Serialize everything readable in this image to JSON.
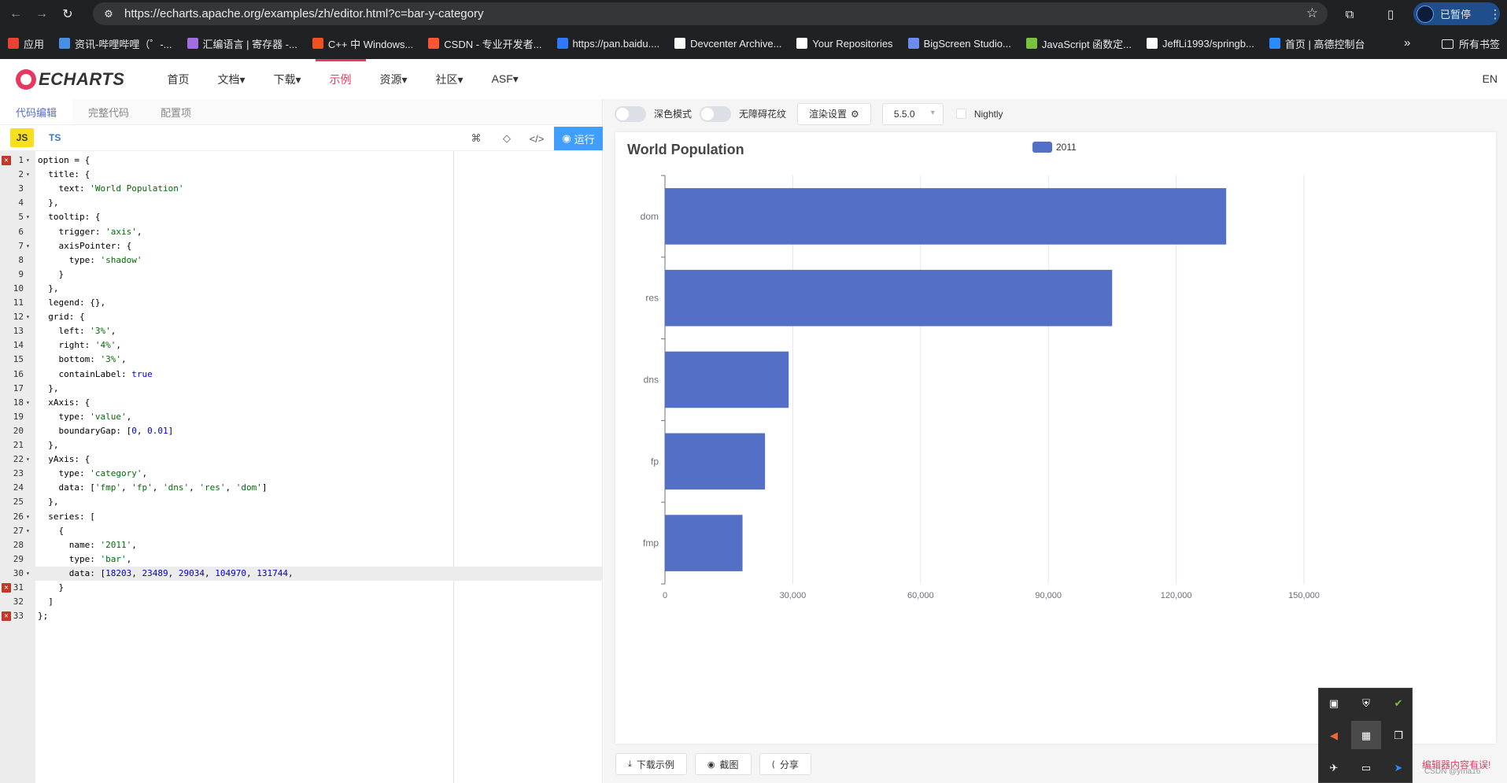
{
  "browser": {
    "url": "https://echarts.apache.org/examples/zh/editor.html?c=bar-y-category",
    "profile_label": "已暂停",
    "bookmarks": [
      {
        "label": "应用",
        "color": "#ea4335"
      },
      {
        "label": "资讯-哔哩哔哩（゜-...",
        "color": "#4a90e2"
      },
      {
        "label": "汇编语言 | 寄存器 -...",
        "color": "#a06ee1"
      },
      {
        "label": "C++ 中 Windows...",
        "color": "#f25022"
      },
      {
        "label": "CSDN - 专业开发者...",
        "color": "#fc5531"
      },
      {
        "label": "https://pan.baidu....",
        "color": "#2f79ff"
      },
      {
        "label": "Devcenter Archive...",
        "color": "#ffffff"
      },
      {
        "label": "Your Repositories",
        "color": "#ffffff"
      },
      {
        "label": "BigScreen Studio...",
        "color": "#6d8cf0"
      },
      {
        "label": "JavaScript 函数定...",
        "color": "#7ac142"
      },
      {
        "label": "JeffLi1993/springb...",
        "color": "#ffffff"
      },
      {
        "label": "首页 | 高德控制台",
        "color": "#2a8cff"
      }
    ],
    "bookmarks_more": "»",
    "all_bookmarks": "所有书签"
  },
  "site": {
    "logo": "ECHARTS",
    "nav": [
      "首页",
      "文档▾",
      "下载▾",
      "示例",
      "资源▾",
      "社区▾",
      "ASF▾"
    ],
    "active_nav": "示例",
    "lang": "EN",
    "accent": "#e43961"
  },
  "editor": {
    "tabs": [
      "代码编辑",
      "完整代码",
      "配置项"
    ],
    "lang_js": "JS",
    "lang_ts": "TS",
    "run_label": "运行",
    "error_lines": [
      1,
      31,
      33
    ],
    "highlight_line": 30,
    "fold_lines": [
      1,
      2,
      5,
      7,
      12,
      18,
      22,
      26,
      27,
      30
    ],
    "lines": [
      "option = {",
      "  title: {",
      "    text: 'World Population'",
      "  },",
      "  tooltip: {",
      "    trigger: 'axis',",
      "    axisPointer: {",
      "      type: 'shadow'",
      "    }",
      "  },",
      "  legend: {},",
      "  grid: {",
      "    left: '3%',",
      "    right: '4%',",
      "    bottom: '3%',",
      "    containLabel: true",
      "  },",
      "  xAxis: {",
      "    type: 'value',",
      "    boundaryGap: [0, 0.01]",
      "  },",
      "  yAxis: {",
      "    type: 'category',",
      "    data: ['fmp', 'fp', 'dns', 'res', 'dom']",
      "  },",
      "  series: [",
      "    {",
      "      name: '2011',",
      "      type: 'bar',",
      "      data: [18203, 23489, 29034, 104970, 131744,",
      "    }",
      "  ]",
      "};"
    ]
  },
  "preview": {
    "dark_mode_label": "深色模式",
    "barrier_free_label": "无障碍花纹",
    "render_settings_label": "渲染设置",
    "version": "5.5.0",
    "nightly_label": "Nightly",
    "buttons": [
      "下载示例",
      "截图",
      "分享"
    ],
    "editor_error": "编辑器内容有误!",
    "watermark": "CSDN @yma16"
  },
  "chart_data": {
    "type": "bar",
    "orientation": "horizontal",
    "title": "World Population",
    "categories": [
      "fmp",
      "fp",
      "dns",
      "res",
      "dom"
    ],
    "series": [
      {
        "name": "2011",
        "values": [
          18203,
          23489,
          29034,
          104970,
          131744
        ],
        "color": "#5470c6"
      }
    ],
    "xlim": [
      0,
      150000
    ],
    "xticks": [
      "0",
      "30,000",
      "60,000",
      "90,000",
      "120,000",
      "150,000"
    ],
    "grid": true,
    "legend_position": "top-center"
  }
}
